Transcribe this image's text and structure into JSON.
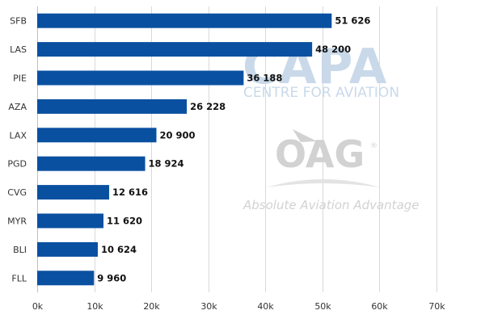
{
  "chart_data": {
    "type": "bar",
    "orientation": "horizontal",
    "categories": [
      "SFB",
      "LAS",
      "PIE",
      "AZA",
      "LAX",
      "PGD",
      "CVG",
      "MYR",
      "BLI",
      "FLL"
    ],
    "values": [
      51626,
      48200,
      36188,
      26228,
      20900,
      18924,
      12616,
      11620,
      10624,
      9960
    ],
    "value_labels": [
      "51 626",
      "48 200",
      "36 188",
      "26 228",
      "20 900",
      "18 924",
      "12 616",
      "11 620",
      "10 624",
      "9 960"
    ],
    "xlim": [
      0,
      70000
    ],
    "xticks": [
      0,
      10000,
      20000,
      30000,
      40000,
      50000,
      60000,
      70000
    ],
    "xtick_labels": [
      "0k",
      "10k",
      "20k",
      "30k",
      "40k",
      "50k",
      "60k",
      "70k"
    ],
    "grid": "vertical",
    "bar_color": "#0a50a1",
    "title": "",
    "xlabel": "",
    "ylabel": ""
  },
  "watermarks": {
    "capa_logo": "CAPA",
    "capa_tagline": "CENTRE FOR AVIATION",
    "oag_logo": "OAG",
    "oag_registered": "®",
    "oag_tagline": "Absolute Aviation Advantage",
    "capa_color": "#c9d9ea",
    "oag_color": "#d2d2d2"
  }
}
